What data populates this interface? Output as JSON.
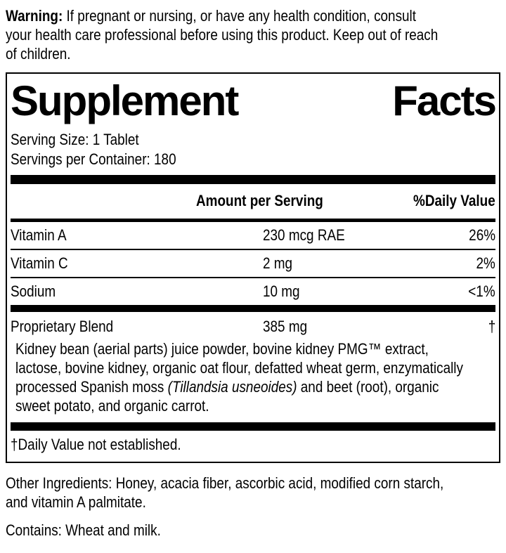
{
  "colors": {
    "ink": "#000000",
    "background": "#ffffff"
  },
  "warning": {
    "label": "Warning:",
    "line1": " If pregnant or nursing, or have any health condition, consult",
    "line2": "your health care professional before using this product. Keep out of reach",
    "line3": "of children."
  },
  "panel": {
    "title_word1": "Supplement",
    "title_word2": "Facts",
    "serving_size": "Serving Size: 1 Tablet",
    "servings_per_container": "Servings per Container: 180",
    "col_amount": "Amount per Serving",
    "col_dv": "%Daily Value",
    "rows": [
      {
        "name": "Vitamin A",
        "amount": "230 mcg RAE",
        "dv": "26%"
      },
      {
        "name": "Vitamin C",
        "amount": "2 mg",
        "dv": "2%"
      },
      {
        "name": "Sodium",
        "amount": "10 mg",
        "dv": "<1%"
      },
      {
        "name": "Proprietary Blend",
        "amount": "385 mg",
        "dv": "†"
      }
    ],
    "blend_description": {
      "line1": "Kidney bean (aerial parts) juice powder, bovine kidney PMG™ extract,",
      "line2": "lactose, bovine kidney, organic oat flour, defatted wheat germ, enzymatically",
      "line3_pre": "processed Spanish moss ",
      "line3_italic": "(Tillandsia usneoides)",
      "line3_post": " and beet (root), organic",
      "line4": "sweet potato, and organic carrot."
    },
    "footnote": "†Daily Value not established."
  },
  "other_ingredients": {
    "line1": "Other Ingredients: Honey, acacia fiber, ascorbic acid, modified corn starch,",
    "line2": "and vitamin A palmitate."
  },
  "contains": "Contains: Wheat and milk.",
  "code": "05"
}
